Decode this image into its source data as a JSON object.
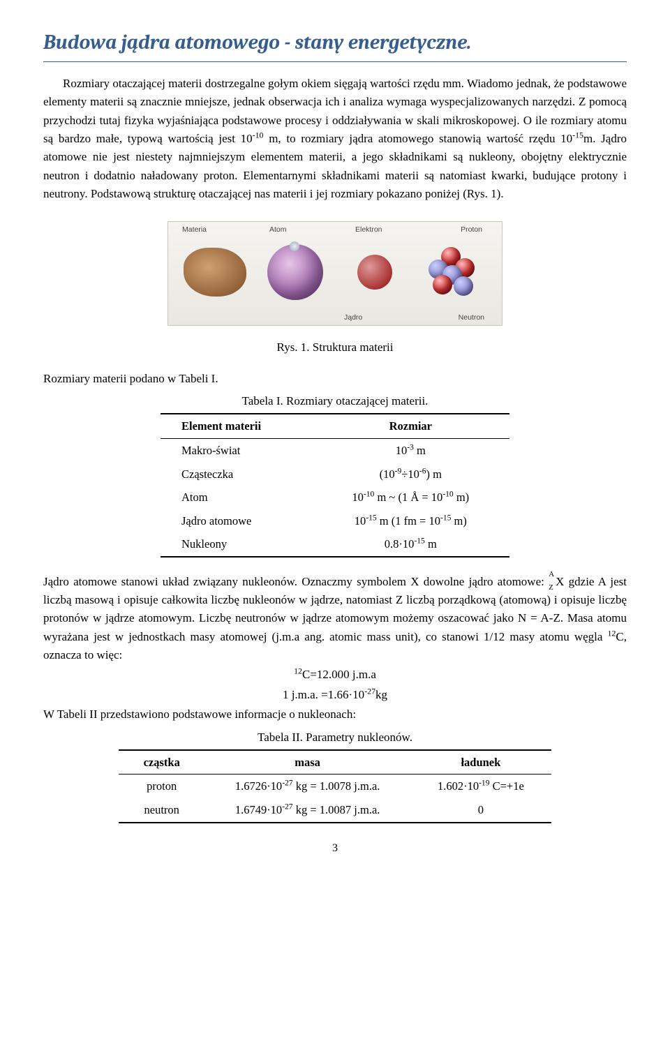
{
  "title": "Budowa jądra atomowego - stany energetyczne.",
  "para1_a": "Rozmiary otaczającej materii dostrzegalne gołym okiem sięgają wartości rzędu mm. Wiadomo jednak, że podstawowe elementy materii są znacznie mniejsze, jednak obserwacja ich i analiza wymaga wyspecjalizowanych narzędzi. Z pomocą przychodzi tutaj fizyka wyjaśniająca podstawowe procesy i oddziaływania w skali mikroskopowej. O ile rozmiary atomu są bardzo małe, typową wartością jest 10",
  "para1_b": " m, to rozmiary jądra atomowego stanowią wartość rzędu 10",
  "para1_c": "m. Jądro atomowe nie jest niestety najmniejszym elementem materii, a jego składnikami są nukleony, obojętny elektrycznie neutron i dodatnio naładowany proton. Elementarnymi składnikami materii są natomiast kwarki, budujące protony i neutrony. Podstawową strukturę otaczającej nas materii i jej rozmiary pokazano poniżej (Rys. 1).",
  "exp1": "-10",
  "exp2": "-15",
  "fig_labels": {
    "materia": "Materia",
    "atom": "Atom",
    "elektron": "Elektron",
    "proton": "Proton",
    "jadro": "Jądro",
    "neutron": "Neutron"
  },
  "fig_caption": "Rys. 1. Struktura materii",
  "line_rozmiary": "Rozmiary materii podano w Tabeli I.",
  "table1": {
    "caption": "Tabela I. Rozmiary otaczającej materii.",
    "head_el": "Element materii",
    "head_roz": "Rozmiar",
    "rows": [
      {
        "el": "Makro-świat",
        "roz_html": "10<sup>-3</sup> m"
      },
      {
        "el": "Cząsteczka",
        "roz_html": "(10<sup>-9</sup>÷10<sup>-6</sup>) m"
      },
      {
        "el": "Atom",
        "roz_html": "10<sup>-10</sup> m ~ (1 Å = 10<sup>-10</sup> m)"
      },
      {
        "el": "Jądro atomowe",
        "roz_html": "10<sup>-15</sup> m (1 fm  =  10<sup>-15</sup> m)"
      },
      {
        "el": "Nukleony",
        "roz_html": "0.8·10<sup>-15</sup> m"
      }
    ]
  },
  "para2_a": "Jądro atomowe stanowi układ związany nukleonów. Oznaczmy symbolem X dowolne jądro atomowe: ",
  "azx": {
    "A": "A",
    "Z": "Z",
    "X": "X"
  },
  "para2_b": " gdzie A jest liczbą masową i opisuje całkowita liczbę nukleonów w jądrze, natomiast Z liczbą porządkową (atomową) i opisuje liczbę protonów w jądrze atomowym. Liczbę neutronów w jądrze atomowym możemy oszacować jako N = A-Z. Masa atomu wyrażana jest w jednostkach masy atomowej (j.m.a ang. atomic mass unit), co stanowi 1/12 masy atomu węgla ",
  "para2_c": "C, oznacza to więc:",
  "c12sup": "12",
  "eq1_html": "<sup>12</sup>C=12.000 j.m.a",
  "eq2_html": "1 j.m.a. =1.66·10<sup>-27</sup>kg",
  "line_tab2": "W Tabeli II przedstawiono podstawowe informacje o nukleonach:",
  "table2": {
    "caption": "Tabela II. Parametry nukleonów.",
    "head_cz": "cząstka",
    "head_masa": "masa",
    "head_lad": "ładunek",
    "rows": [
      {
        "cz": "proton",
        "masa_html": "1.6726·10<sup>-27</sup> kg = 1.0078 j.m.a.",
        "lad_html": "1.602·10<sup>-19</sup> C=+1e"
      },
      {
        "cz": "neutron",
        "masa_html": "1.6749·10<sup>-27</sup> kg = 1.0087 j.m.a.",
        "lad_html": "0"
      }
    ]
  },
  "page_number": "3"
}
